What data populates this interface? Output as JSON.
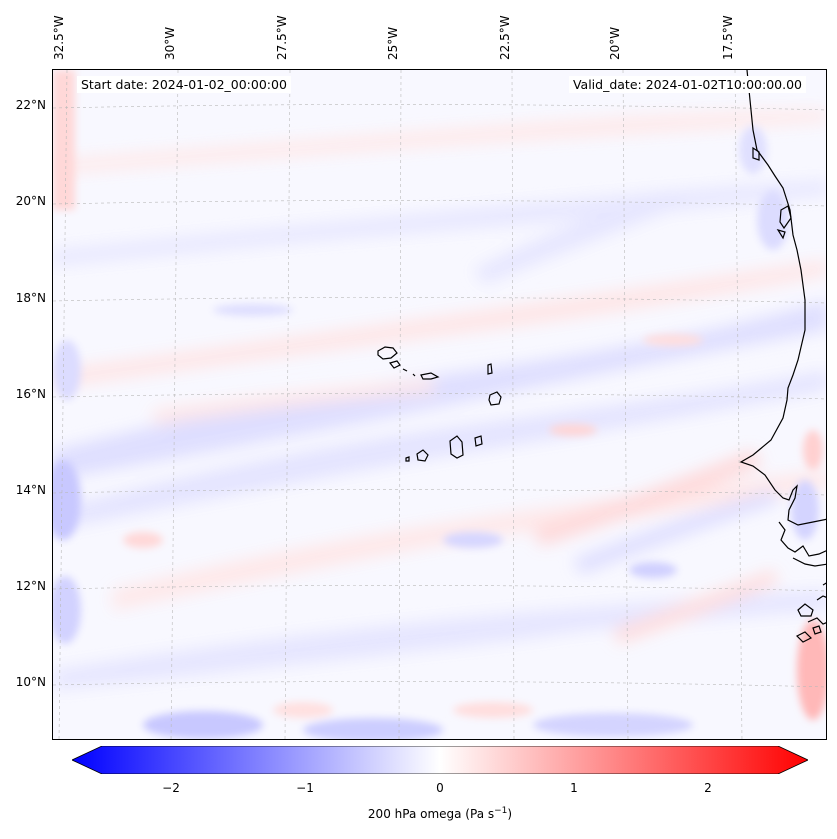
{
  "map": {
    "start_date": "Start date: 2024-01-02_00:00:00",
    "valid_date": "Valid_date: 2024-01-02T10:00:00.00",
    "lon_labels": [
      "32.5°W",
      "30°W",
      "27.5°W",
      "25°W",
      "22.5°W",
      "20°W",
      "17.5°W"
    ],
    "lat_labels": [
      "22°N",
      "20°N",
      "18°N",
      "16°N",
      "14°N",
      "12°N",
      "10°N"
    ]
  },
  "colorbar": {
    "ticks": [
      "−2",
      "−1",
      "0",
      "1",
      "2"
    ],
    "label": "200 hPa omega (Pa s",
    "label_sup": "−1",
    "label_end": ")",
    "min_color": "#0000ff",
    "mid_color": "#ffffff",
    "max_color": "#ff0000"
  }
}
